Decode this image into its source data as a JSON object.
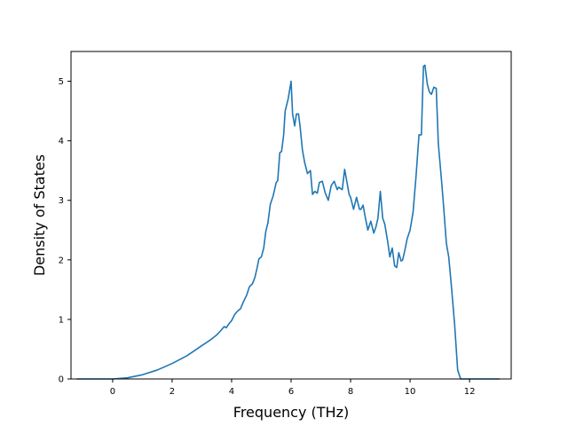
{
  "chart_data": {
    "type": "line",
    "title": "",
    "xlabel": "Frequency (THz)",
    "ylabel": "Density of States",
    "xlim": [
      -1.4,
      13.4
    ],
    "ylim": [
      0,
      5.5
    ],
    "xticks": [
      0,
      2,
      4,
      6,
      8,
      10,
      12
    ],
    "yticks": [
      0,
      1,
      2,
      3,
      4,
      5
    ],
    "grid": false,
    "legend": "none",
    "series": [
      {
        "color": "#1f77b4",
        "x": [
          -1.2,
          0.0,
          0.5,
          1.0,
          1.5,
          2.0,
          2.5,
          3.0,
          3.3,
          3.5,
          3.65,
          3.75,
          3.82,
          3.9,
          4.0,
          4.1,
          4.2,
          4.3,
          4.4,
          4.5,
          4.6,
          4.7,
          4.78,
          4.85,
          4.92,
          5.0,
          5.08,
          5.15,
          5.22,
          5.3,
          5.4,
          5.5,
          5.55,
          5.62,
          5.68,
          5.75,
          5.8,
          5.9,
          6.0,
          6.05,
          6.12,
          6.18,
          6.25,
          6.3,
          6.38,
          6.45,
          6.55,
          6.65,
          6.72,
          6.8,
          6.88,
          6.95,
          7.05,
          7.15,
          7.25,
          7.35,
          7.45,
          7.55,
          7.6,
          7.72,
          7.8,
          7.88,
          7.95,
          8.0,
          8.1,
          8.2,
          8.3,
          8.35,
          8.42,
          8.5,
          8.58,
          8.68,
          8.78,
          8.85,
          8.92,
          9.0,
          9.08,
          9.15,
          9.25,
          9.32,
          9.4,
          9.48,
          9.55,
          9.62,
          9.7,
          9.75,
          9.82,
          9.9,
          10.0,
          10.1,
          10.2,
          10.3,
          10.38,
          10.45,
          10.5,
          10.58,
          10.65,
          10.72,
          10.8,
          10.88,
          10.95,
          11.02,
          11.08,
          11.15,
          11.22,
          11.3,
          11.4,
          11.5,
          11.6,
          11.7,
          11.75,
          11.8,
          11.85,
          12.0,
          13.0
        ],
        "values": [
          0.0,
          0.0,
          0.02,
          0.07,
          0.15,
          0.26,
          0.39,
          0.56,
          0.66,
          0.74,
          0.82,
          0.88,
          0.86,
          0.92,
          0.98,
          1.08,
          1.14,
          1.18,
          1.3,
          1.4,
          1.55,
          1.6,
          1.7,
          1.85,
          2.02,
          2.05,
          2.2,
          2.48,
          2.62,
          2.93,
          3.08,
          3.3,
          3.33,
          3.8,
          3.82,
          4.1,
          4.5,
          4.7,
          5.0,
          4.45,
          4.25,
          4.45,
          4.45,
          4.25,
          3.85,
          3.65,
          3.45,
          3.5,
          3.1,
          3.15,
          3.12,
          3.3,
          3.32,
          3.12,
          3.0,
          3.25,
          3.32,
          3.18,
          3.22,
          3.18,
          3.52,
          3.3,
          3.1,
          3.05,
          2.85,
          3.05,
          2.85,
          2.85,
          2.92,
          2.7,
          2.5,
          2.65,
          2.45,
          2.55,
          2.7,
          3.15,
          2.7,
          2.6,
          2.3,
          2.05,
          2.2,
          1.9,
          1.87,
          2.12,
          1.98,
          2.0,
          2.15,
          2.35,
          2.5,
          2.8,
          3.4,
          4.1,
          4.1,
          5.25,
          5.27,
          4.95,
          4.82,
          4.78,
          4.9,
          4.88,
          3.95,
          3.55,
          3.2,
          2.75,
          2.28,
          2.05,
          1.5,
          0.9,
          0.15,
          0.0,
          0.0,
          0.0,
          0.0,
          0.0,
          0.0
        ]
      }
    ]
  }
}
